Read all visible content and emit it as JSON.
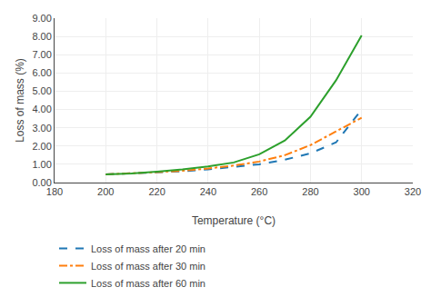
{
  "chart_data": {
    "type": "line",
    "x_label": "Temperature (°C)",
    "y_label": "Loss of mass (%)",
    "x": [
      200,
      210,
      220,
      230,
      240,
      250,
      260,
      270,
      280,
      290,
      300
    ],
    "series": [
      {
        "name": "Loss of mass after 20 min",
        "line_style": "dashed",
        "values": [
          0.45,
          0.5,
          0.55,
          0.62,
          0.72,
          0.85,
          1.0,
          1.25,
          1.6,
          2.2,
          4.0
        ]
      },
      {
        "name": "Loss of mass after 30 min",
        "line_style": "dashdot",
        "values": [
          0.45,
          0.5,
          0.57,
          0.65,
          0.77,
          0.93,
          1.15,
          1.5,
          2.05,
          2.8,
          3.55
        ]
      },
      {
        "name": "Loss of mass after 60 min",
        "line_style": "solid",
        "values": [
          0.45,
          0.5,
          0.6,
          0.72,
          0.88,
          1.1,
          1.55,
          2.3,
          3.6,
          5.6,
          8.05
        ]
      }
    ],
    "xlim": [
      180,
      320
    ],
    "xticks": [
      180,
      200,
      220,
      240,
      260,
      280,
      300,
      320
    ],
    "ylim": [
      0.0,
      9.0
    ],
    "yticks": [
      {
        "value": 0,
        "label": "0.00"
      },
      {
        "value": 1,
        "label": "1.00"
      },
      {
        "value": 2,
        "label": "2.00"
      },
      {
        "value": 3,
        "label": "3.00"
      },
      {
        "value": 4,
        "label": "4.00"
      },
      {
        "value": 5,
        "label": "5.00"
      },
      {
        "value": 6,
        "label": "6.00"
      },
      {
        "value": 7,
        "label": "7.00"
      },
      {
        "value": 8,
        "label": "8.00"
      },
      {
        "value": 9,
        "label": "9.00"
      }
    ],
    "grid": true,
    "legend": "bottom"
  }
}
